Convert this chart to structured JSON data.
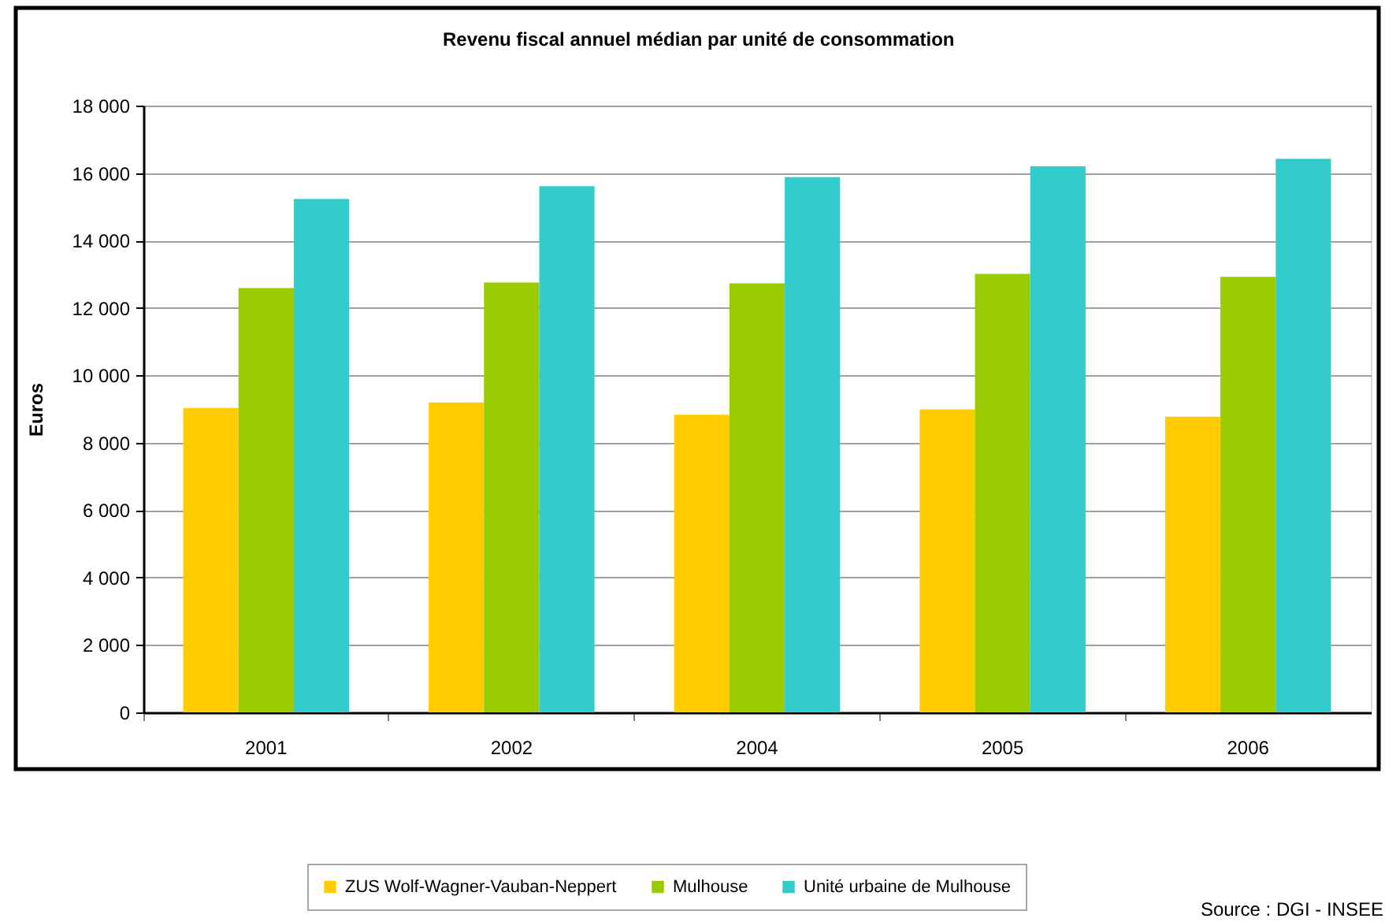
{
  "chart_data": {
    "type": "bar",
    "title": "Revenu fiscal annuel médian par unité de consommation",
    "ylabel": "Euros",
    "categories": [
      "2001",
      "2002",
      "2004",
      "2005",
      "2006"
    ],
    "series": [
      {
        "name": "ZUS Wolf-Wagner-Vauban-Neppert",
        "color": "#ffcc00",
        "values": [
          9030,
          9190,
          8830,
          8990,
          8770
        ]
      },
      {
        "name": "Mulhouse",
        "color": "#99cc00",
        "values": [
          12590,
          12750,
          12730,
          13010,
          12920
        ]
      },
      {
        "name": "Unité urbaine de Mulhouse",
        "color": "#33cccc",
        "values": [
          15230,
          15610,
          15880,
          16200,
          16420
        ]
      }
    ],
    "ylim": [
      0,
      18000
    ],
    "yticks": [
      0,
      {
        "value": 2000,
        "label": "2 000"
      },
      {
        "value": 4000,
        "label": "4 000"
      },
      {
        "value": 6000,
        "label": "6 000"
      },
      {
        "value": 8000,
        "label": "8 000"
      },
      {
        "value": 10000,
        "label": "10 000"
      },
      {
        "value": 12000,
        "label": "12 000"
      },
      {
        "value": 14000,
        "label": "14 000"
      },
      {
        "value": 16000,
        "label": "16 000"
      },
      {
        "value": 18000,
        "label": "18 000"
      }
    ],
    "grid": "y",
    "legend": "bottom",
    "annotations": [
      "Source : DGI - INSEE"
    ]
  }
}
